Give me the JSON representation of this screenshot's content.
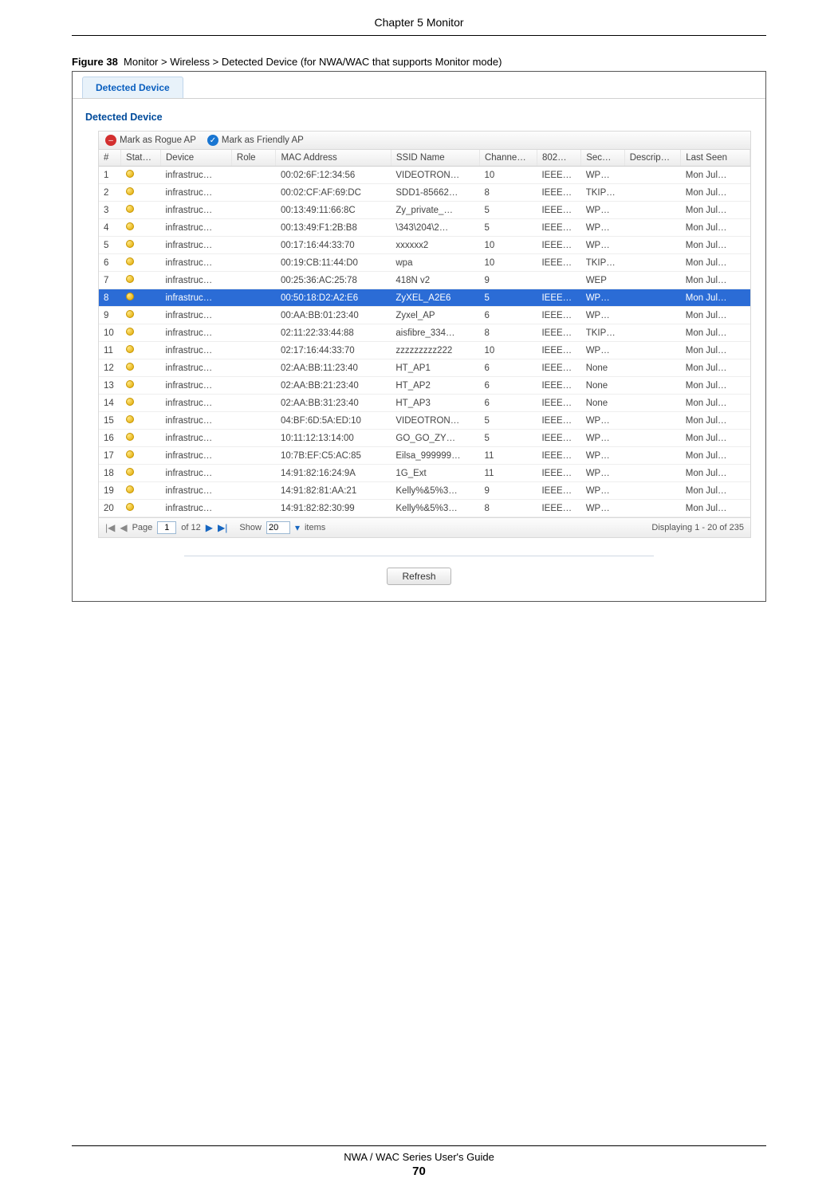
{
  "header": {
    "chapter": "Chapter 5 Monitor"
  },
  "caption": {
    "label": "Figure 38",
    "text": "Monitor > Wireless > Detected Device (for NWA/WAC that supports Monitor mode)"
  },
  "tab": {
    "label": "Detected Device"
  },
  "panel": {
    "title": "Detected Device"
  },
  "toolbar": {
    "rogue": "Mark as Rogue AP",
    "friendly": "Mark as Friendly AP"
  },
  "columns": {
    "num": "#",
    "status": "Stat…",
    "device": "Device",
    "role": "Role",
    "mac": "MAC Address",
    "ssid": "SSID Name",
    "channel": "Channe…",
    "ieee": "802…",
    "sec": "Sec…",
    "desc": "Descrip…",
    "last": "Last Seen"
  },
  "rows": [
    {
      "n": "1",
      "dev": "infrastruc…",
      "role": "",
      "mac": "00:02:6F:12:34:56",
      "ssid": "VIDEOTRON…",
      "ch": "10",
      "ieee": "IEEE…",
      "sec": "WP…",
      "desc": "",
      "last": "Mon Jul…",
      "sel": false
    },
    {
      "n": "2",
      "dev": "infrastruc…",
      "role": "",
      "mac": "00:02:CF:AF:69:DC",
      "ssid": "SDD1-85662…",
      "ch": "8",
      "ieee": "IEEE…",
      "sec": "TKIP…",
      "desc": "",
      "last": "Mon Jul…",
      "sel": false
    },
    {
      "n": "3",
      "dev": "infrastruc…",
      "role": "",
      "mac": "00:13:49:11:66:8C",
      "ssid": "Zy_private_…",
      "ch": "5",
      "ieee": "IEEE…",
      "sec": "WP…",
      "desc": "",
      "last": "Mon Jul…",
      "sel": false
    },
    {
      "n": "4",
      "dev": "infrastruc…",
      "role": "",
      "mac": "00:13:49:F1:2B:B8",
      "ssid": "\\343\\204\\2…",
      "ch": "5",
      "ieee": "IEEE…",
      "sec": "WP…",
      "desc": "",
      "last": "Mon Jul…",
      "sel": false
    },
    {
      "n": "5",
      "dev": "infrastruc…",
      "role": "",
      "mac": "00:17:16:44:33:70",
      "ssid": "xxxxxx2",
      "ch": "10",
      "ieee": "IEEE…",
      "sec": "WP…",
      "desc": "",
      "last": "Mon Jul…",
      "sel": false
    },
    {
      "n": "6",
      "dev": "infrastruc…",
      "role": "",
      "mac": "00:19:CB:11:44:D0",
      "ssid": "wpa",
      "ch": "10",
      "ieee": "IEEE…",
      "sec": "TKIP…",
      "desc": "",
      "last": "Mon Jul…",
      "sel": false
    },
    {
      "n": "7",
      "dev": "infrastruc…",
      "role": "",
      "mac": "00:25:36:AC:25:78",
      "ssid": "418N v2",
      "ch": "9",
      "ieee": "",
      "sec": "WEP",
      "desc": "",
      "last": "Mon Jul…",
      "sel": false
    },
    {
      "n": "8",
      "dev": "infrastruc…",
      "role": "",
      "mac": "00:50:18:D2:A2:E6",
      "ssid": "ZyXEL_A2E6",
      "ch": "5",
      "ieee": "IEEE…",
      "sec": "WP…",
      "desc": "",
      "last": "Mon Jul…",
      "sel": true
    },
    {
      "n": "9",
      "dev": "infrastruc…",
      "role": "",
      "mac": "00:AA:BB:01:23:40",
      "ssid": "Zyxel_AP",
      "ch": "6",
      "ieee": "IEEE…",
      "sec": "WP…",
      "desc": "",
      "last": "Mon Jul…",
      "sel": false
    },
    {
      "n": "10",
      "dev": "infrastruc…",
      "role": "",
      "mac": "02:11:22:33:44:88",
      "ssid": "aisfibre_334…",
      "ch": "8",
      "ieee": "IEEE…",
      "sec": "TKIP…",
      "desc": "",
      "last": "Mon Jul…",
      "sel": false
    },
    {
      "n": "11",
      "dev": "infrastruc…",
      "role": "",
      "mac": "02:17:16:44:33:70",
      "ssid": "zzzzzzzzz222",
      "ch": "10",
      "ieee": "IEEE…",
      "sec": "WP…",
      "desc": "",
      "last": "Mon Jul…",
      "sel": false
    },
    {
      "n": "12",
      "dev": "infrastruc…",
      "role": "",
      "mac": "02:AA:BB:11:23:40",
      "ssid": "HT_AP1",
      "ch": "6",
      "ieee": "IEEE…",
      "sec": "None",
      "desc": "",
      "last": "Mon Jul…",
      "sel": false
    },
    {
      "n": "13",
      "dev": "infrastruc…",
      "role": "",
      "mac": "02:AA:BB:21:23:40",
      "ssid": "HT_AP2",
      "ch": "6",
      "ieee": "IEEE…",
      "sec": "None",
      "desc": "",
      "last": "Mon Jul…",
      "sel": false
    },
    {
      "n": "14",
      "dev": "infrastruc…",
      "role": "",
      "mac": "02:AA:BB:31:23:40",
      "ssid": "HT_AP3",
      "ch": "6",
      "ieee": "IEEE…",
      "sec": "None",
      "desc": "",
      "last": "Mon Jul…",
      "sel": false
    },
    {
      "n": "15",
      "dev": "infrastruc…",
      "role": "",
      "mac": "04:BF:6D:5A:ED:10",
      "ssid": "VIDEOTRON…",
      "ch": "5",
      "ieee": "IEEE…",
      "sec": "WP…",
      "desc": "",
      "last": "Mon Jul…",
      "sel": false
    },
    {
      "n": "16",
      "dev": "infrastruc…",
      "role": "",
      "mac": "10:11:12:13:14:00",
      "ssid": "GO_GO_ZY…",
      "ch": "5",
      "ieee": "IEEE…",
      "sec": "WP…",
      "desc": "",
      "last": "Mon Jul…",
      "sel": false
    },
    {
      "n": "17",
      "dev": "infrastruc…",
      "role": "",
      "mac": "10:7B:EF:C5:AC:85",
      "ssid": "Eilsa_999999…",
      "ch": "11",
      "ieee": "IEEE…",
      "sec": "WP…",
      "desc": "",
      "last": "Mon Jul…",
      "sel": false
    },
    {
      "n": "18",
      "dev": "infrastruc…",
      "role": "",
      "mac": "14:91:82:16:24:9A",
      "ssid": "1G_Ext",
      "ch": "11",
      "ieee": "IEEE…",
      "sec": "WP…",
      "desc": "",
      "last": "Mon Jul…",
      "sel": false
    },
    {
      "n": "19",
      "dev": "infrastruc…",
      "role": "",
      "mac": "14:91:82:81:AA:21",
      "ssid": "Kelly%&5%3…",
      "ch": "9",
      "ieee": "IEEE…",
      "sec": "WP…",
      "desc": "",
      "last": "Mon Jul…",
      "sel": false
    },
    {
      "n": "20",
      "dev": "infrastruc…",
      "role": "",
      "mac": "14:91:82:82:30:99",
      "ssid": "Kelly%&5%3…",
      "ch": "8",
      "ieee": "IEEE…",
      "sec": "WP…",
      "desc": "",
      "last": "Mon Jul…",
      "sel": false
    }
  ],
  "pager": {
    "page_label": "Page",
    "page_value": "1",
    "page_total": "of 12",
    "show_label": "Show",
    "show_value": "20",
    "items_label": "items",
    "display": "Displaying 1 - 20 of 235"
  },
  "refresh": {
    "label": "Refresh"
  },
  "footer": {
    "guide": "NWA / WAC Series User's Guide",
    "page": "70"
  }
}
